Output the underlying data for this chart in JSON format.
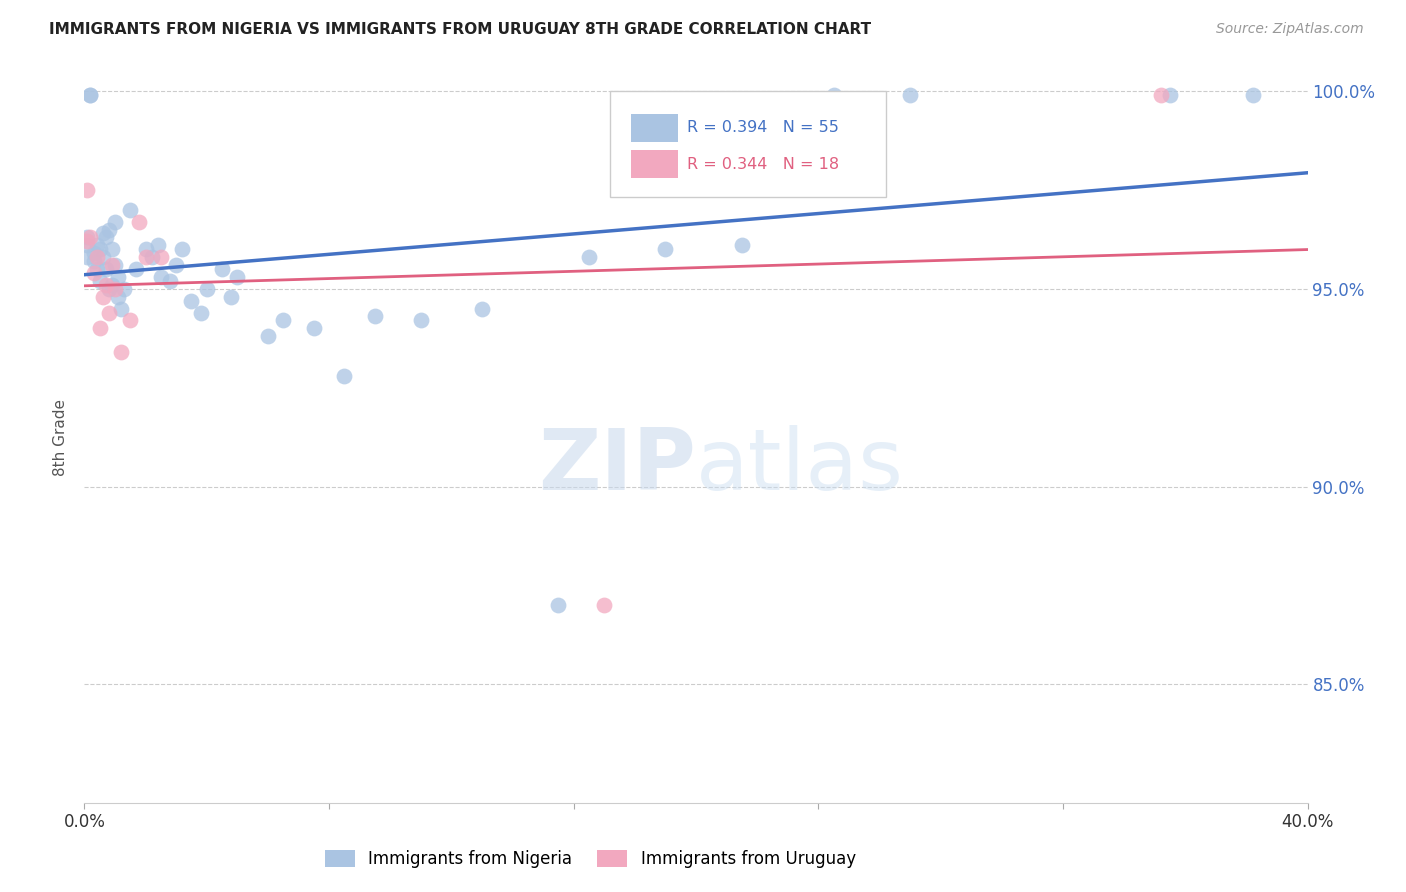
{
  "title": "IMMIGRANTS FROM NIGERIA VS IMMIGRANTS FROM URUGUAY 8TH GRADE CORRELATION CHART",
  "source": "Source: ZipAtlas.com",
  "ylabel_label": "8th Grade",
  "xlim": [
    0.0,
    0.4
  ],
  "ylim": [
    0.82,
    1.005
  ],
  "xtick_positions": [
    0.0,
    0.08,
    0.16,
    0.24,
    0.32,
    0.4
  ],
  "xtick_labels": [
    "0.0%",
    "",
    "",
    "",
    "",
    "40.0%"
  ],
  "ytick_positions": [
    0.85,
    0.9,
    0.95,
    1.0
  ],
  "ytick_labels": [
    "85.0%",
    "90.0%",
    "95.0%",
    "100.0%"
  ],
  "nigeria_color": "#aac4e2",
  "uruguay_color": "#f2a8bf",
  "nigeria_line_color": "#4472c4",
  "uruguay_line_color": "#e06080",
  "nigeria_R": 0.394,
  "nigeria_N": 55,
  "uruguay_R": 0.344,
  "uruguay_N": 18,
  "legend_label_nigeria": "Immigrants from Nigeria",
  "legend_label_uruguay": "Immigrants from Uruguay",
  "watermark_zip": "ZIP",
  "watermark_atlas": "atlas",
  "nigeria_x": [
    0.001,
    0.001,
    0.001,
    0.002,
    0.002,
    0.003,
    0.003,
    0.004,
    0.004,
    0.005,
    0.005,
    0.006,
    0.006,
    0.007,
    0.007,
    0.008,
    0.008,
    0.009,
    0.009,
    0.01,
    0.01,
    0.011,
    0.011,
    0.012,
    0.013,
    0.015,
    0.017,
    0.02,
    0.022,
    0.024,
    0.025,
    0.028,
    0.03,
    0.032,
    0.035,
    0.038,
    0.04,
    0.045,
    0.048,
    0.05,
    0.06,
    0.065,
    0.075,
    0.085,
    0.095,
    0.11,
    0.13,
    0.155,
    0.165,
    0.19,
    0.215,
    0.245,
    0.27,
    0.355,
    0.382
  ],
  "nigeria_y": [
    0.961,
    0.958,
    0.963,
    0.999,
    0.999,
    0.957,
    0.959,
    0.955,
    0.961,
    0.96,
    0.952,
    0.958,
    0.964,
    0.955,
    0.963,
    0.95,
    0.965,
    0.951,
    0.96,
    0.956,
    0.967,
    0.948,
    0.953,
    0.945,
    0.95,
    0.97,
    0.955,
    0.96,
    0.958,
    0.961,
    0.953,
    0.952,
    0.956,
    0.96,
    0.947,
    0.944,
    0.95,
    0.955,
    0.948,
    0.953,
    0.938,
    0.942,
    0.94,
    0.928,
    0.943,
    0.942,
    0.945,
    0.87,
    0.958,
    0.96,
    0.961,
    0.999,
    0.999,
    0.999,
    0.999
  ],
  "uruguay_x": [
    0.001,
    0.001,
    0.002,
    0.003,
    0.004,
    0.005,
    0.006,
    0.007,
    0.008,
    0.009,
    0.01,
    0.012,
    0.015,
    0.018,
    0.02,
    0.025,
    0.17,
    0.352
  ],
  "uruguay_y": [
    0.962,
    0.975,
    0.963,
    0.954,
    0.958,
    0.94,
    0.948,
    0.951,
    0.944,
    0.956,
    0.95,
    0.934,
    0.942,
    0.967,
    0.958,
    0.958,
    0.87,
    0.999
  ]
}
